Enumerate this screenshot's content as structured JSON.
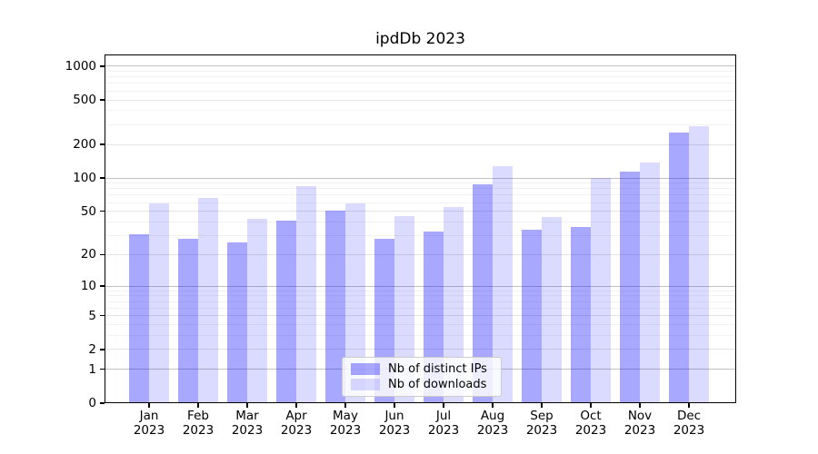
{
  "figure": {
    "title": "ipdDb 2023"
  },
  "chart_data": {
    "type": "bar",
    "title": "ipdDb 2023",
    "categories": [
      "Jan 2023",
      "Feb 2023",
      "Mar 2023",
      "Apr 2023",
      "May 2023",
      "Jun 2023",
      "Jul 2023",
      "Aug 2023",
      "Sep 2023",
      "Oct 2023",
      "Nov 2023",
      "Dec 2023"
    ],
    "series": [
      {
        "name": "Nb of distinct IPs",
        "color": "rgba(0,0,255,0.34)",
        "values": [
          31,
          28,
          26,
          41,
          51,
          28,
          33,
          87,
          34,
          36,
          115,
          255
        ]
      },
      {
        "name": "Nb of downloads",
        "color": "rgba(0,0,255,0.14)",
        "values": [
          59,
          66,
          43,
          85,
          59,
          45,
          55,
          127,
          44,
          100,
          137,
          292
        ]
      }
    ],
    "xlabel": "",
    "ylabel": "",
    "yscale": "log10(1+y)",
    "y_ticks": [
      0,
      1,
      2,
      5,
      10,
      20,
      50,
      100,
      200,
      500,
      1000
    ],
    "y_minor_ticks": [
      3,
      4,
      6,
      7,
      8,
      9,
      30,
      40,
      60,
      70,
      80,
      90,
      300,
      400,
      600,
      700,
      800,
      900
    ],
    "ylim": [
      0,
      1270
    ],
    "grid": "major+minor",
    "legend_position": "lower center"
  },
  "legend": {
    "items": [
      "Nb of distinct IPs",
      "Nb of downloads"
    ]
  },
  "colors": {
    "background": "#ffffff",
    "bar_distinct_ips": "rgba(0,0,255,0.34)",
    "bar_downloads": "rgba(0,0,255,0.14)",
    "grid_decade": "#c2c2c2",
    "grid_labeled": "#e4e4e4",
    "grid_minor": "#f2f2f2",
    "axis": "#000000",
    "legend_border": "#cccccc"
  }
}
